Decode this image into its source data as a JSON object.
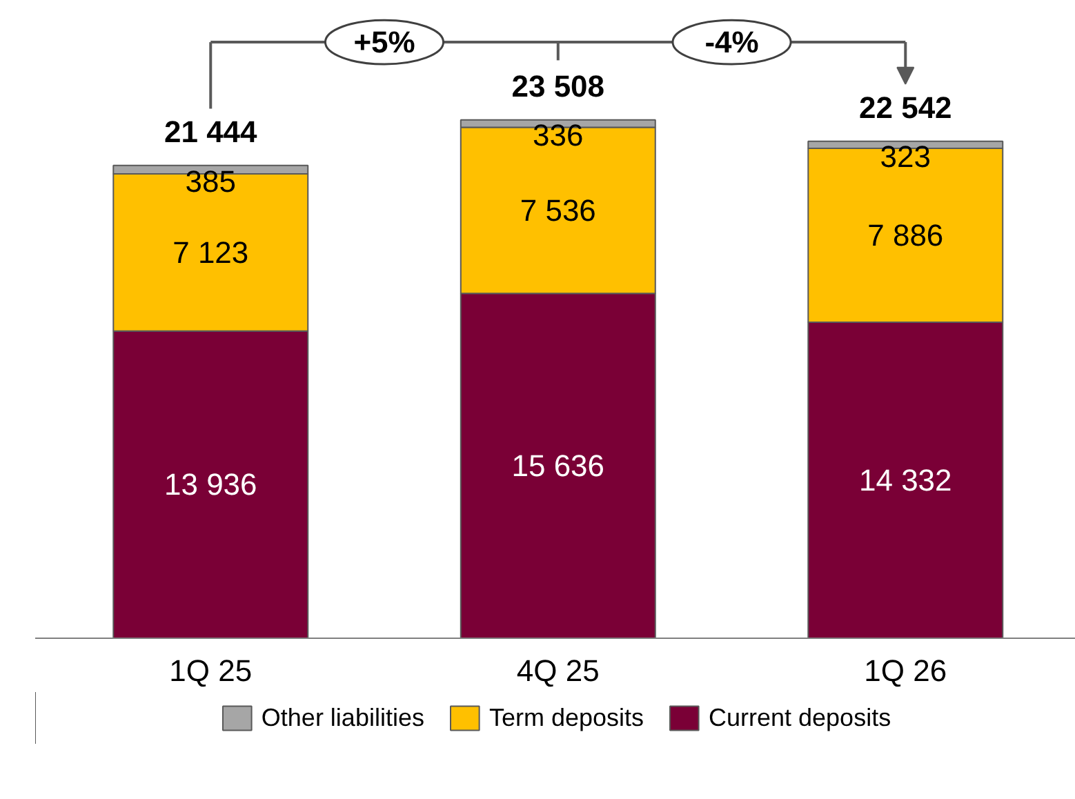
{
  "chart_data": {
    "type": "bar",
    "stacked": true,
    "categories": [
      "1Q 25",
      "4Q 25",
      "1Q 26"
    ],
    "series": [
      {
        "name": "Current deposits",
        "color": "#7a0036",
        "values": [
          13936,
          15636,
          14332
        ],
        "value_labels": [
          "13 936",
          "15 636",
          "14 332"
        ]
      },
      {
        "name": "Term deposits",
        "color": "#ffc000",
        "values": [
          7123,
          7536,
          7886
        ],
        "value_labels": [
          "7 123",
          "7 536",
          "7 886"
        ]
      },
      {
        "name": "Other liabilities",
        "color": "#a6a6a6",
        "values": [
          385,
          336,
          323
        ],
        "value_labels": [
          "385",
          "336",
          "323"
        ]
      }
    ],
    "totals": [
      "21 444",
      "23 508",
      "22 542"
    ],
    "annotations": [
      "+5%",
      "-4%"
    ],
    "legend": "bottom"
  }
}
